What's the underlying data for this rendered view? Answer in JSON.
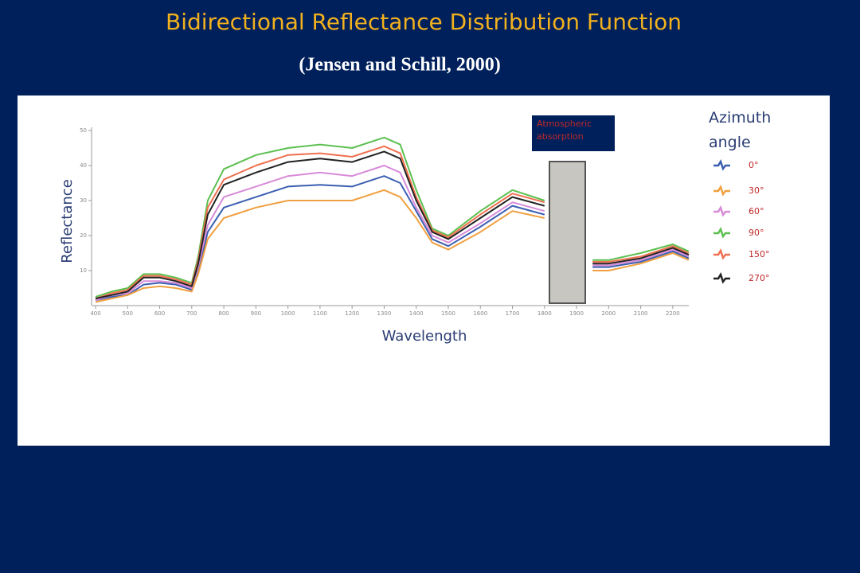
{
  "chart_data": {
    "type": "line",
    "title": "Bidirectional Reflectance Distribution Function",
    "subtitle": "(Jensen and Schill, 2000)",
    "y_label": "Reflectance",
    "x_label": "Wavelength",
    "annotation": "Atmospheric absorption",
    "legend_title": "Azimuth angle",
    "x": [
      400,
      450,
      500,
      550,
      600,
      650,
      700,
      720,
      750,
      800,
      900,
      1000,
      1100,
      1200,
      1300,
      1350,
      1400,
      1450,
      1500,
      1600,
      1700,
      1800,
      1850,
      1900,
      1950,
      2000,
      2100,
      2200,
      2250
    ],
    "series": [
      {
        "name": "0°",
        "color": "#3b5fb0",
        "values": [
          1.5,
          2.5,
          3,
          6,
          6.5,
          6,
          4.5,
          10,
          21,
          28,
          31,
          34,
          34.5,
          34,
          37,
          35,
          27,
          19,
          17,
          22.5,
          28.5,
          26,
          null,
          null,
          11,
          11,
          12.5,
          15.5,
          13.5
        ]
      },
      {
        "name": "30°",
        "color": "#f0a040",
        "values": [
          1,
          2,
          3,
          5,
          5.5,
          5,
          4,
          9,
          19,
          25,
          28,
          30,
          30,
          30,
          33,
          31,
          25,
          18,
          16,
          21,
          27,
          25,
          null,
          null,
          10,
          10,
          12,
          15,
          13
        ]
      },
      {
        "name": "60°",
        "color": "#d88ad8",
        "values": [
          1.5,
          3,
          3.5,
          7,
          7,
          6.5,
          5,
          11,
          23,
          31,
          34,
          37,
          38,
          37,
          40,
          38,
          28,
          20,
          18,
          23.5,
          29.5,
          27,
          null,
          null,
          11.5,
          11.5,
          13,
          16,
          14
        ]
      },
      {
        "name": "90°",
        "color": "#5cc050",
        "values": [
          2.5,
          4,
          5,
          9,
          9,
          8,
          6.5,
          14,
          30,
          39,
          43,
          45,
          46,
          45,
          48,
          46,
          33,
          22,
          20,
          27,
          33,
          30,
          null,
          null,
          13,
          13,
          15,
          17.5,
          15.5
        ]
      },
      {
        "name": "150°",
        "color": "#f07050",
        "values": [
          2,
          3.5,
          4.5,
          8.5,
          8.5,
          7.5,
          6,
          13,
          28,
          36,
          40,
          43,
          43.5,
          42.5,
          45.5,
          43.5,
          31,
          21.5,
          19.5,
          26,
          32,
          29.5,
          null,
          null,
          12.5,
          12.5,
          14,
          17,
          15
        ]
      },
      {
        "name": "270°",
        "color": "#222222",
        "values": [
          2,
          3,
          4,
          8,
          8,
          7,
          5.5,
          12,
          26,
          34.5,
          38,
          41,
          42,
          41,
          44,
          42,
          30,
          21,
          19,
          25,
          31,
          28.5,
          null,
          null,
          12,
          12,
          13.5,
          16.5,
          14.5
        ]
      }
    ],
    "xlim": [
      400,
      2250
    ],
    "xticks": [
      400,
      500,
      600,
      700,
      800,
      900,
      1000,
      1100,
      1200,
      1300,
      1400,
      1500,
      1600,
      1700,
      1800,
      1900,
      2000,
      2100,
      2200
    ],
    "ylim": [
      0,
      50
    ],
    "yticks": [
      10,
      20,
      30,
      40,
      50
    ]
  }
}
